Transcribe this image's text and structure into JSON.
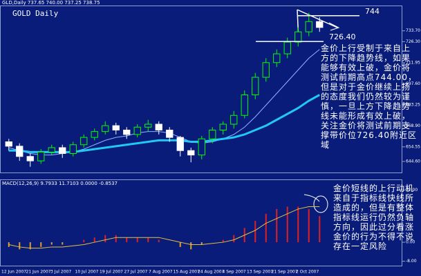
{
  "chart_data": [
    {
      "type": "candlestick",
      "header": "GLD,Daily 737.65 740.00 737.25 738.75",
      "title": "GOLD Daily",
      "open": [
        658,
        655,
        648,
        645,
        651,
        654,
        650,
        656,
        661,
        665,
        669,
        666,
        663,
        668,
        670,
        666,
        661,
        652,
        649,
        660,
        666,
        670,
        676,
        690,
        702,
        712,
        718,
        726,
        733,
        740
      ],
      "high": [
        660,
        657,
        650,
        653,
        656,
        656,
        658,
        663,
        667,
        672,
        671,
        668,
        670,
        673,
        672,
        668,
        662,
        654,
        662,
        668,
        672,
        679,
        693,
        705,
        715,
        721,
        729,
        736,
        746,
        743
      ],
      "low": [
        652,
        645,
        641,
        643,
        649,
        647,
        648,
        654,
        659,
        663,
        663,
        660,
        661,
        665,
        663,
        658,
        648,
        644,
        646,
        657,
        663,
        667,
        674,
        687,
        699,
        709,
        715,
        723,
        730,
        733
      ],
      "close": [
        655,
        648,
        645,
        651,
        654,
        650,
        656,
        661,
        665,
        669,
        666,
        663,
        668,
        670,
        666,
        661,
        652,
        649,
        660,
        666,
        670,
        676,
        690,
        702,
        712,
        718,
        726,
        733,
        740,
        736
      ],
      "up_color": "#00ff00",
      "down_color": "#ffffff",
      "series": [
        {
          "color": "#8fb4ff",
          "width": 1,
          "values": [
            654,
            652,
            650,
            649,
            649,
            650,
            651,
            653,
            656,
            659,
            661,
            662,
            664,
            665,
            665,
            664,
            661,
            658,
            657,
            658,
            660,
            663,
            668,
            675,
            683,
            691,
            699,
            707,
            715,
            721
          ]
        },
        {
          "color": "#21c8f0",
          "width": 3,
          "values": [
            652,
            652,
            651,
            651,
            651,
            651,
            651,
            652,
            653,
            654,
            655,
            656,
            657,
            658,
            659,
            659,
            659,
            658,
            658,
            659,
            660,
            661,
            663,
            666,
            669,
            673,
            677,
            681,
            686,
            690
          ]
        }
      ],
      "date_labels": [
        "12 Jun 2007",
        "21 Jun 2007",
        "3 Jul 2007",
        "10 Jul 2007",
        "19 Jul 2007",
        "27 Jul 2007",
        "7 Aug 2007",
        "15 Aug 2007",
        "24 Aug 2007",
        "4 Sep 2007",
        "13 Sep 2007",
        "21 Sep 2007",
        "2 Oct 2007"
      ],
      "levels": [
        {
          "value": 744,
          "label": "744"
        },
        {
          "value": 726.4,
          "label": "726.40"
        }
      ],
      "annotation": "金价上行受制于来自上方的下降趋势线，如果能够有效上破，金价将测试前期高点744.00，但是对于金价继续上扬的态度我们仍然较为谨慎，一旦上方下降趋势线未能形成有效上破，关注金价将测试前期支撑带价位726.40附近区域",
      "ylim": [
        638,
        750
      ],
      "yticks": [
        {
          "value": 733.7,
          "label": "733.70"
        },
        {
          "value": 726.3,
          "label": "726.30"
        },
        {
          "value": 711.95,
          "label": "711.95"
        },
        {
          "value": 697.6,
          "label": "697.60"
        },
        {
          "value": 683.25,
          "label": "683.25"
        },
        {
          "value": 668.9,
          "label": "668.90"
        },
        {
          "value": 654.55,
          "label": "654.55"
        },
        {
          "value": 644.6,
          "label": "644.60"
        }
      ]
    },
    {
      "type": "bar",
      "label": "MACD(12,26,9) 9.7933 11.7103 0.0000 -0.8537",
      "values": [
        -2,
        -3,
        -3,
        -2,
        -1,
        -1,
        0,
        1,
        2,
        3,
        3,
        2,
        2,
        2,
        1,
        0,
        -2,
        -3,
        -1,
        0,
        1,
        3,
        6,
        9,
        12,
        14,
        15,
        15,
        14,
        11
      ],
      "up_color": "#e02020",
      "down_color": "#e0a020",
      "series": [
        {
          "color": "#e8c040",
          "values": [
            -1,
            -2,
            -2.5,
            -2.5,
            -2,
            -2,
            -1.5,
            -1,
            0,
            1,
            2,
            2,
            2,
            2,
            2,
            1,
            0,
            -1,
            -1,
            -0.5,
            0,
            1,
            3,
            5,
            8,
            10,
            12,
            14,
            15,
            15
          ]
        }
      ],
      "annotation": "金价短线的上行动机来自于指标线快线所造成的，但是有整体指标线运行仍然负轴方向，因此过分看涨金价的行为不得不说存在一定风险",
      "ylim": [
        -9,
        23
      ],
      "yticks": [
        {
          "value": 22,
          "label": "22.00"
        },
        {
          "value": 0,
          "label": "0.00"
        },
        {
          "value": -8,
          "label": "-8.00"
        }
      ]
    }
  ]
}
